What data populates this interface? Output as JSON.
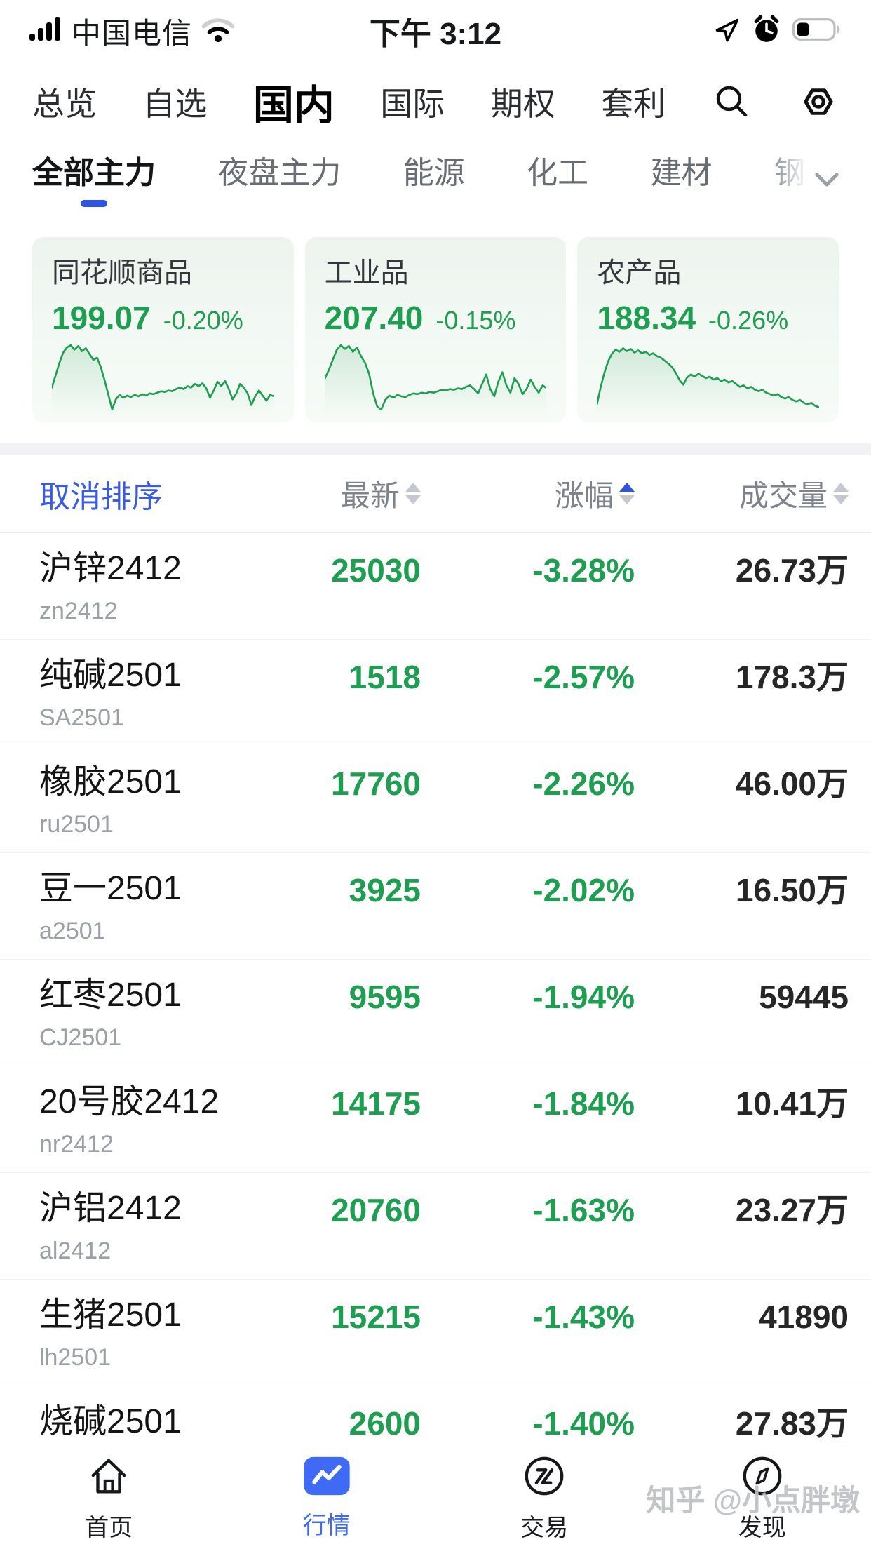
{
  "status_bar": {
    "carrier": "中国电信",
    "time": "下午 3:12",
    "battery_percent": 30
  },
  "top_nav": {
    "items": [
      {
        "label": "总览",
        "active": false
      },
      {
        "label": "自选",
        "active": false
      },
      {
        "label": "国内",
        "active": true
      },
      {
        "label": "国际",
        "active": false
      },
      {
        "label": "期权",
        "active": false
      },
      {
        "label": "套利",
        "active": false
      }
    ],
    "icons": [
      "search-icon",
      "settings-icon"
    ]
  },
  "sub_tabs": {
    "items": [
      {
        "label": "全部主力",
        "active": true,
        "faded": false
      },
      {
        "label": "夜盘主力",
        "active": false,
        "faded": false
      },
      {
        "label": "能源",
        "active": false,
        "faded": false
      },
      {
        "label": "化工",
        "active": false,
        "faded": false
      },
      {
        "label": "建材",
        "active": false,
        "faded": false
      },
      {
        "label": "钢",
        "active": false,
        "faded": true
      }
    ]
  },
  "index_cards": [
    {
      "title": "同花顺商品",
      "value": "199.07",
      "change": "-0.20%",
      "spark": [
        38,
        55,
        72,
        86,
        93,
        96,
        90,
        95,
        88,
        92,
        84,
        76,
        79,
        66,
        48,
        28,
        8,
        22,
        28,
        24,
        27,
        25,
        28,
        26,
        29,
        27,
        30,
        29,
        31,
        33,
        32,
        34,
        33,
        36,
        38,
        36,
        40,
        38,
        43,
        40,
        44,
        37,
        24,
        34,
        46,
        40,
        47,
        36,
        22,
        30,
        43,
        38,
        30,
        14,
        26,
        34,
        27,
        20,
        28,
        26
      ]
    },
    {
      "title": "工业品",
      "value": "207.40",
      "change": "-0.15%",
      "spark": [
        50,
        62,
        76,
        90,
        96,
        91,
        95,
        87,
        93,
        81,
        72,
        57,
        30,
        12,
        8,
        21,
        27,
        24,
        28,
        26,
        25,
        28,
        30,
        29,
        31,
        30,
        32,
        31,
        33,
        35,
        34,
        36,
        35,
        37,
        36,
        39,
        41,
        36,
        30,
        43,
        56,
        36,
        26,
        46,
        59,
        41,
        31,
        51,
        43,
        29,
        36,
        49,
        39,
        31,
        41,
        37
      ]
    },
    {
      "title": "农产品",
      "value": "188.34",
      "change": "-0.26%",
      "spark": [
        14,
        38,
        58,
        74,
        84,
        90,
        87,
        92,
        88,
        91,
        86,
        89,
        85,
        87,
        83,
        85,
        81,
        79,
        75,
        71,
        66,
        58,
        48,
        42,
        52,
        56,
        53,
        57,
        54,
        51,
        53,
        49,
        51,
        47,
        49,
        45,
        47,
        43,
        39,
        41,
        37,
        39,
        35,
        33,
        35,
        31,
        29,
        27,
        29,
        25,
        23,
        25,
        21,
        19,
        21,
        17,
        15,
        17,
        13,
        11
      ]
    }
  ],
  "quote_table": {
    "cancel_sort_label": "取消排序",
    "columns": [
      {
        "label": "最新",
        "sort": "none"
      },
      {
        "label": "涨幅",
        "sort": "asc"
      },
      {
        "label": "成交量",
        "sort": "none"
      }
    ],
    "rows": [
      {
        "name": "沪锌2412",
        "code": "zn2412",
        "last": "25030",
        "change": "-3.28%",
        "volume": "26.73万"
      },
      {
        "name": "纯碱2501",
        "code": "SA2501",
        "last": "1518",
        "change": "-2.57%",
        "volume": "178.3万"
      },
      {
        "name": "橡胶2501",
        "code": "ru2501",
        "last": "17760",
        "change": "-2.26%",
        "volume": "46.00万"
      },
      {
        "name": "豆一2501",
        "code": "a2501",
        "last": "3925",
        "change": "-2.02%",
        "volume": "16.50万"
      },
      {
        "name": "红枣2501",
        "code": "CJ2501",
        "last": "9595",
        "change": "-1.94%",
        "volume": "59445"
      },
      {
        "name": "20号胶2412",
        "code": "nr2412",
        "last": "14175",
        "change": "-1.84%",
        "volume": "10.41万"
      },
      {
        "name": "沪铝2412",
        "code": "al2412",
        "last": "20760",
        "change": "-1.63%",
        "volume": "23.27万"
      },
      {
        "name": "生猪2501",
        "code": "lh2501",
        "last": "15215",
        "change": "-1.43%",
        "volume": "41890"
      },
      {
        "name": "烧碱2501",
        "code": "",
        "last": "2600",
        "change": "-1.40%",
        "volume": "27.83万"
      }
    ]
  },
  "tab_bar": {
    "items": [
      {
        "label": "首页",
        "icon": "home-icon",
        "active": false
      },
      {
        "label": "行情",
        "icon": "market-chart-icon",
        "active": true
      },
      {
        "label": "交易",
        "icon": "trade-icon",
        "active": false
      },
      {
        "label": "发现",
        "icon": "discover-icon",
        "active": false
      }
    ]
  },
  "watermark": "知乎 @小点胖墩",
  "colors": {
    "green": "#1e9e50",
    "link_blue": "#3a5be5",
    "tab_blue": "#3f6af6",
    "sort_active_blue": "#2f54e8"
  }
}
